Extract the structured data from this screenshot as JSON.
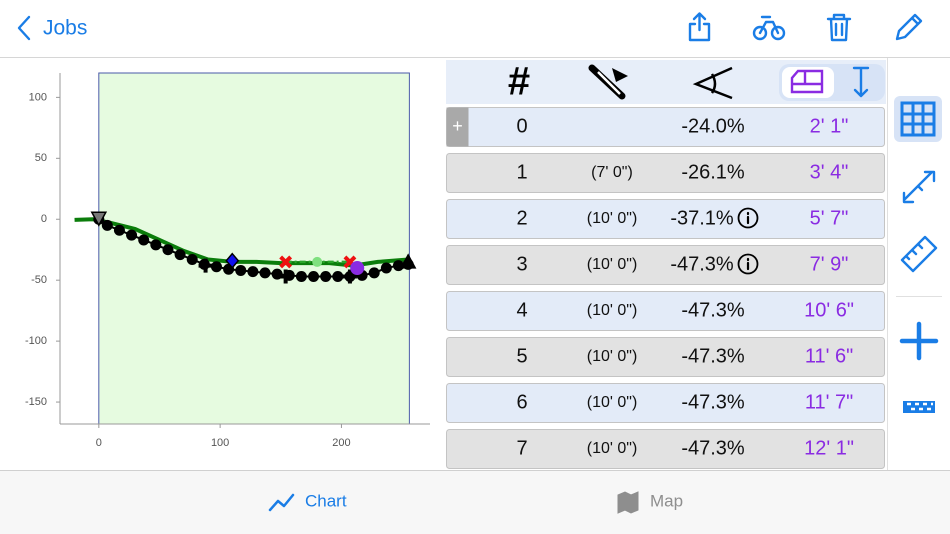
{
  "nav": {
    "back": "Jobs"
  },
  "chart": {
    "type": "line",
    "xlim": [
      -32,
      273
    ],
    "ylim": [
      -168,
      120
    ],
    "xticks": [
      0,
      100,
      200
    ],
    "yticks": [
      100,
      50,
      0,
      -50,
      -100,
      -150
    ],
    "region": {
      "x": [
        0,
        256
      ],
      "color": "#e6fbe0",
      "border": "#4a5aa8"
    },
    "series": [
      {
        "style": "line",
        "color": "#0b7d0b",
        "x": [
          -20,
          -5,
          10,
          30,
          50,
          70,
          90,
          110,
          130,
          150,
          170,
          190,
          210,
          230,
          255
        ],
        "values": [
          -0.5,
          0,
          -3,
          -8,
          -17,
          -26,
          -33,
          -35,
          -35,
          -36,
          -36,
          -36,
          -38,
          -35,
          -33
        ]
      },
      {
        "style": "dots",
        "color": "#000000",
        "x": [
          0,
          7,
          17,
          27,
          37,
          47,
          57,
          67,
          77,
          87,
          97,
          107,
          117,
          127,
          137,
          147,
          157,
          167,
          177,
          187,
          197,
          207,
          217,
          227,
          237,
          247,
          255
        ],
        "values": [
          0,
          -5,
          -9,
          -13,
          -17,
          -21,
          -25,
          -29,
          -33,
          -37,
          -39,
          -41,
          -42,
          -43,
          -44,
          -45,
          -46,
          -47,
          -47,
          -47,
          -47,
          -47,
          -46,
          -44,
          -40,
          -38,
          -37
        ]
      },
      {
        "style": "dash",
        "color": "#2aa52a",
        "x": [
          154,
          207
        ],
        "values": [
          -35,
          -35
        ]
      }
    ],
    "markers": [
      {
        "shape": "triangle-down",
        "color": "#777777",
        "x": 0,
        "y": 0
      },
      {
        "shape": "triangle-up",
        "color": "#000000",
        "x": 255,
        "y": -35
      },
      {
        "shape": "diamond",
        "color": "#1010ee",
        "x": 110,
        "y": -34
      },
      {
        "shape": "x",
        "color": "#ee1111",
        "x": 154,
        "y": -35
      },
      {
        "shape": "x",
        "color": "#ee1111",
        "x": 207,
        "y": -35
      },
      {
        "shape": "circle",
        "color": "#7fe07f",
        "x": 180,
        "y": -35
      },
      {
        "shape": "plus",
        "color": "#000000",
        "x": 88,
        "y": -38
      },
      {
        "shape": "plus",
        "color": "#000000",
        "x": 154,
        "y": -47
      },
      {
        "shape": "plus",
        "color": "#000000",
        "x": 207,
        "y": -47
      },
      {
        "shape": "circle",
        "color": "#8a2be2",
        "x": 213,
        "y": -40
      }
    ]
  },
  "table": {
    "header": "#",
    "rows": [
      {
        "n": "0",
        "grade": "-24.0%",
        "dist": "2' 1\"",
        "expand": "+"
      },
      {
        "n": "1",
        "length": "(7' 0\")",
        "grade": "-26.1%",
        "dist": "3' 4\""
      },
      {
        "n": "2",
        "length": "(10' 0\")",
        "grade": "-37.1%",
        "dist": "5' 7\"",
        "info": true
      },
      {
        "n": "3",
        "length": "(10' 0\")",
        "grade": "-47.3%",
        "dist": "7' 9\"",
        "info": true
      },
      {
        "n": "4",
        "length": "(10' 0\")",
        "grade": "-47.3%",
        "dist": "10' 6\""
      },
      {
        "n": "5",
        "length": "(10' 0\")",
        "grade": "-47.3%",
        "dist": "11' 6\""
      },
      {
        "n": "6",
        "length": "(10' 0\")",
        "grade": "-47.3%",
        "dist": "11' 7\""
      },
      {
        "n": "7",
        "length": "(10' 0\")",
        "grade": "-47.3%",
        "dist": "12' 1\""
      }
    ]
  },
  "tabs": [
    {
      "label": "Chart",
      "selected": true
    },
    {
      "label": "Map",
      "selected": false
    }
  ]
}
